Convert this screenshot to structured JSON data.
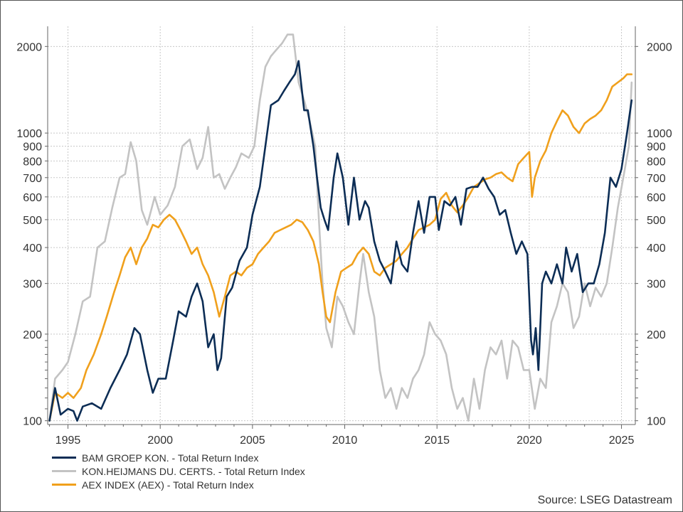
{
  "chart_data": {
    "type": "line",
    "title": "",
    "xlabel": "",
    "ylabel": "",
    "y_scale": "log",
    "x_range": [
      1993.9,
      2025.75
    ],
    "ylim": [
      97,
      2350
    ],
    "grid": true,
    "x_ticks": [
      1995,
      2000,
      2005,
      2010,
      2015,
      2020,
      2025
    ],
    "x_tick_labels": [
      "1995",
      "2000",
      "2005",
      "2010",
      "2015",
      "2020",
      "2025"
    ],
    "y_ticks": [
      100,
      200,
      300,
      400,
      500,
      600,
      700,
      800,
      900,
      1000,
      2000
    ],
    "y_tick_labels": [
      "100",
      "200",
      "300",
      "400",
      "500",
      "600",
      "700",
      "800",
      "900",
      "1000",
      "2000"
    ],
    "legend_position": "bottom-left",
    "source": "Source: LSEG Datastream",
    "series": [
      {
        "name": "BAM GROEP KON. - Total Return Index",
        "color": "#0c2d55",
        "x": [
          1994.0,
          1994.3,
          1994.6,
          1995.0,
          1995.3,
          1995.5,
          1995.8,
          1996.3,
          1996.8,
          1997.3,
          1997.8,
          1998.2,
          1998.6,
          1998.9,
          1999.3,
          1999.6,
          1999.9,
          2000.3,
          2000.7,
          2001.0,
          2001.4,
          2001.7,
          2002.0,
          2002.3,
          2002.6,
          2002.9,
          2003.1,
          2003.3,
          2003.6,
          2003.9,
          2004.3,
          2004.7,
          2005.0,
          2005.4,
          2005.7,
          2006.0,
          2006.4,
          2006.7,
          2007.0,
          2007.3,
          2007.5,
          2007.8,
          2008.0,
          2008.3,
          2008.5,
          2008.7,
          2008.9,
          2009.1,
          2009.4,
          2009.6,
          2009.9,
          2010.2,
          2010.5,
          2010.8,
          2011.1,
          2011.3,
          2011.6,
          2011.9,
          2012.2,
          2012.5,
          2012.8,
          2013.1,
          2013.4,
          2013.7,
          2014.0,
          2014.3,
          2014.6,
          2014.9,
          2015.1,
          2015.4,
          2015.7,
          2016.0,
          2016.3,
          2016.6,
          2016.9,
          2017.2,
          2017.5,
          2017.8,
          2018.1,
          2018.4,
          2018.7,
          2019.0,
          2019.3,
          2019.6,
          2019.9,
          2020.1,
          2020.2,
          2020.35,
          2020.5,
          2020.7,
          2020.9,
          2021.2,
          2021.5,
          2021.8,
          2022.0,
          2022.3,
          2022.6,
          2022.9,
          2023.2,
          2023.5,
          2023.8,
          2024.1,
          2024.4,
          2024.7,
          2025.0,
          2025.3,
          2025.55
        ],
        "values": [
          100,
          130,
          105,
          110,
          108,
          100,
          112,
          115,
          110,
          130,
          150,
          170,
          210,
          200,
          150,
          125,
          140,
          140,
          190,
          240,
          230,
          270,
          300,
          260,
          180,
          200,
          150,
          165,
          270,
          290,
          360,
          400,
          520,
          650,
          900,
          1250,
          1300,
          1400,
          1500,
          1600,
          1780,
          1200,
          1200,
          900,
          700,
          550,
          500,
          460,
          700,
          850,
          700,
          480,
          700,
          500,
          580,
          550,
          420,
          360,
          330,
          300,
          420,
          350,
          330,
          450,
          580,
          450,
          600,
          600,
          460,
          580,
          560,
          600,
          480,
          640,
          650,
          650,
          700,
          640,
          600,
          520,
          540,
          450,
          380,
          420,
          380,
          190,
          170,
          210,
          150,
          300,
          330,
          300,
          350,
          300,
          400,
          330,
          380,
          280,
          300,
          300,
          350,
          450,
          700,
          650,
          750,
          1000,
          1300
        ]
      },
      {
        "name": "KON.HEIJMANS DU. CERTS. - Total Return Index",
        "color": "#c3c3c3",
        "x": [
          1994.0,
          1994.3,
          1994.7,
          1995.0,
          1995.4,
          1995.8,
          1996.2,
          1996.6,
          1997.0,
          1997.4,
          1997.8,
          1998.1,
          1998.4,
          1998.7,
          1999.0,
          1999.3,
          1999.7,
          2000.0,
          2000.4,
          2000.8,
          2001.2,
          2001.6,
          2002.0,
          2002.3,
          2002.6,
          2002.9,
          2003.2,
          2003.5,
          2003.8,
          2004.1,
          2004.4,
          2004.8,
          2005.1,
          2005.4,
          2005.7,
          2006.0,
          2006.3,
          2006.6,
          2006.9,
          2007.2,
          2007.5,
          2007.8,
          2008.1,
          2008.4,
          2008.6,
          2008.8,
          2009.0,
          2009.3,
          2009.6,
          2009.9,
          2010.2,
          2010.5,
          2010.8,
          2011.0,
          2011.3,
          2011.6,
          2011.9,
          2012.2,
          2012.5,
          2012.8,
          2013.1,
          2013.4,
          2013.7,
          2014.0,
          2014.3,
          2014.6,
          2014.9,
          2015.2,
          2015.5,
          2015.8,
          2016.1,
          2016.4,
          2016.7,
          2017.0,
          2017.3,
          2017.6,
          2017.9,
          2018.2,
          2018.5,
          2018.8,
          2019.1,
          2019.4,
          2019.7,
          2020.0,
          2020.3,
          2020.6,
          2020.9,
          2021.2,
          2021.5,
          2021.8,
          2022.1,
          2022.4,
          2022.7,
          2023.0,
          2023.3,
          2023.6,
          2023.9,
          2024.2,
          2024.5,
          2024.8,
          2025.1,
          2025.4,
          2025.55
        ],
        "values": [
          100,
          140,
          150,
          160,
          200,
          260,
          270,
          400,
          420,
          550,
          700,
          720,
          930,
          800,
          540,
          480,
          600,
          520,
          560,
          650,
          900,
          950,
          750,
          820,
          1050,
          700,
          720,
          640,
          700,
          760,
          850,
          820,
          900,
          1300,
          1700,
          1850,
          1950,
          2050,
          2200,
          2200,
          1500,
          1300,
          1100,
          900,
          500,
          300,
          210,
          180,
          270,
          250,
          220,
          200,
          300,
          380,
          280,
          230,
          150,
          120,
          130,
          110,
          130,
          120,
          140,
          150,
          170,
          220,
          200,
          190,
          170,
          130,
          110,
          120,
          100,
          140,
          110,
          150,
          180,
          170,
          190,
          140,
          190,
          180,
          150,
          150,
          110,
          140,
          130,
          220,
          250,
          300,
          280,
          210,
          230,
          300,
          250,
          290,
          270,
          300,
          400,
          550,
          700,
          900,
          1500
        ]
      },
      {
        "name": "AEX INDEX (AEX) - Total Return Index",
        "color": "#f0a01c",
        "x": [
          1994.0,
          1994.3,
          1994.7,
          1995.0,
          1995.3,
          1995.7,
          1996.0,
          1996.4,
          1996.8,
          1997.1,
          1997.5,
          1997.8,
          1998.1,
          1998.4,
          1998.7,
          1999.0,
          1999.3,
          1999.6,
          1999.9,
          2000.2,
          2000.5,
          2000.8,
          2001.1,
          2001.4,
          2001.7,
          2002.0,
          2002.3,
          2002.6,
          2002.9,
          2003.2,
          2003.5,
          2003.8,
          2004.1,
          2004.4,
          2004.7,
          2005.0,
          2005.3,
          2005.6,
          2005.9,
          2006.2,
          2006.5,
          2006.8,
          2007.1,
          2007.4,
          2007.7,
          2008.0,
          2008.3,
          2008.6,
          2008.8,
          2009.0,
          2009.2,
          2009.5,
          2009.8,
          2010.1,
          2010.4,
          2010.7,
          2011.0,
          2011.3,
          2011.6,
          2011.9,
          2012.2,
          2012.5,
          2012.8,
          2013.1,
          2013.4,
          2013.7,
          2014.0,
          2014.3,
          2014.6,
          2014.9,
          2015.2,
          2015.5,
          2015.8,
          2016.1,
          2016.4,
          2016.7,
          2017.0,
          2017.3,
          2017.6,
          2017.9,
          2018.2,
          2018.5,
          2018.8,
          2019.1,
          2019.4,
          2019.7,
          2020.0,
          2020.15,
          2020.3,
          2020.6,
          2020.9,
          2021.2,
          2021.5,
          2021.8,
          2022.1,
          2022.4,
          2022.7,
          2023.0,
          2023.3,
          2023.6,
          2023.9,
          2024.2,
          2024.5,
          2024.8,
          2025.1,
          2025.3,
          2025.55
        ],
        "values": [
          100,
          125,
          120,
          125,
          120,
          130,
          150,
          170,
          200,
          230,
          280,
          320,
          370,
          400,
          350,
          400,
          430,
          480,
          470,
          500,
          520,
          500,
          460,
          420,
          380,
          400,
          350,
          320,
          280,
          230,
          270,
          320,
          330,
          320,
          340,
          350,
          380,
          400,
          420,
          450,
          460,
          470,
          480,
          500,
          490,
          460,
          420,
          350,
          280,
          230,
          220,
          280,
          330,
          340,
          350,
          380,
          400,
          380,
          330,
          320,
          340,
          350,
          360,
          380,
          400,
          430,
          460,
          470,
          480,
          500,
          590,
          620,
          560,
          530,
          560,
          600,
          650,
          670,
          690,
          700,
          720,
          730,
          700,
          680,
          780,
          820,
          860,
          600,
          700,
          800,
          870,
          1000,
          1100,
          1200,
          1150,
          1050,
          1000,
          1080,
          1120,
          1150,
          1200,
          1300,
          1450,
          1500,
          1550,
          1600,
          1600
        ]
      }
    ]
  }
}
